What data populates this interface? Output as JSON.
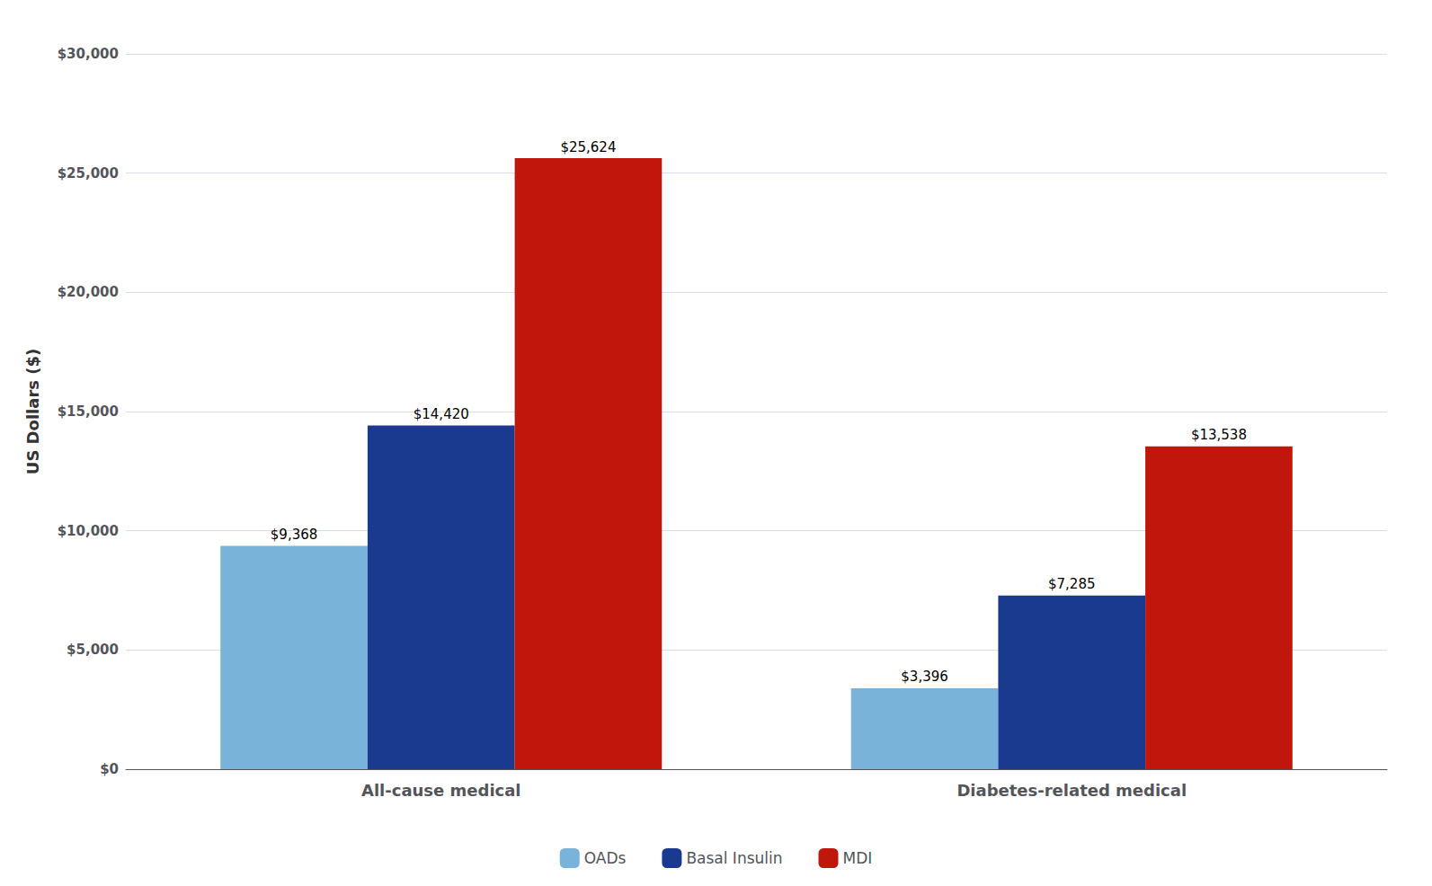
{
  "chart_data": {
    "type": "bar",
    "categories": [
      "All-cause medical",
      "Diabetes-related medical"
    ],
    "series": [
      {
        "name": "OADs",
        "color": "#7ab3d9",
        "values": [
          9368,
          3396
        ],
        "value_labels": [
          "$9,368",
          "$3,396"
        ]
      },
      {
        "name": "Basal Insulin",
        "color": "#1a3a8f",
        "values": [
          14420,
          7285
        ],
        "value_labels": [
          "$14,420",
          "$7,285"
        ]
      },
      {
        "name": "MDI",
        "color": "#c0160c",
        "values": [
          25624,
          13538
        ],
        "value_labels": [
          "$25,624",
          "$13,538"
        ]
      }
    ],
    "ylabel": "US Dollars ($)",
    "ylim": [
      0,
      30000
    ],
    "yticks": [
      {
        "value": 0,
        "label": "$0"
      },
      {
        "value": 5000,
        "label": "$5,000"
      },
      {
        "value": 10000,
        "label": "$10,000"
      },
      {
        "value": 15000,
        "label": "$15,000"
      },
      {
        "value": 20000,
        "label": "$20,000"
      },
      {
        "value": 25000,
        "label": "$25,000"
      },
      {
        "value": 30000,
        "label": "$30,000"
      }
    ],
    "grid": true,
    "legend": "bottom",
    "data_labels": true
  }
}
